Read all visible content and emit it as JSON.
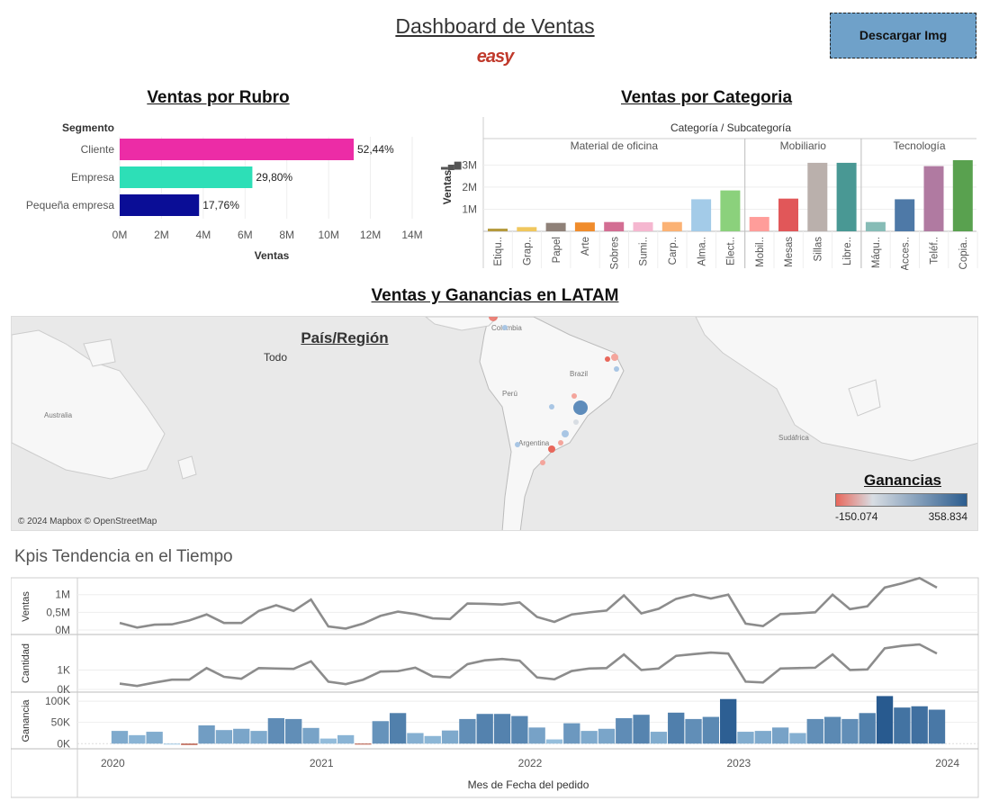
{
  "header": {
    "title": "Dashboard de Ventas",
    "logo_text": "easy",
    "download_label": "Descargar Img"
  },
  "rubro": {
    "title": "Ventas por Rubro",
    "segment_header": "Segmento",
    "xlabel": "Ventas",
    "ticks": [
      "0M",
      "2M",
      "4M",
      "6M",
      "8M",
      "10M",
      "12M",
      "14M"
    ]
  },
  "categoria": {
    "title": "Ventas por Categoria",
    "header": "Categoría / Subcategoría",
    "ylabel": "Ventas",
    "yticks": [
      "1M",
      "2M",
      "3M"
    ],
    "groups": [
      "Material de oficina",
      "Mobiliario",
      "Tecnología"
    ]
  },
  "map": {
    "title": "Ventas y Ganancias en LATAM",
    "filter_title": "País/Región",
    "filter_value": "Todo",
    "attribution": "© 2024 Mapbox © OpenStreetMap",
    "labels": {
      "australia": "Australia",
      "peru": "Perú",
      "brazil": "Brazil",
      "argentina": "Argentina",
      "colombia": "Colombia",
      "sudafrica": "Sudáfrica"
    },
    "legend_title": "Ganancias",
    "legend_min": "-150.074",
    "legend_max": "358.834",
    "colors": {
      "negative": "#e8675b",
      "neutral": "#d8dde3",
      "positive": "#2c5d8f"
    }
  },
  "kpi": {
    "title": "Kpis Tendencia en el Tiempo",
    "row_labels": [
      "Ventas",
      "Cantidad",
      "Ganancia"
    ],
    "ventas_ticks": [
      "1M",
      "0,5M",
      "0M"
    ],
    "cantidad_ticks": [
      "1K",
      "0K"
    ],
    "ganancia_ticks": [
      "100K",
      "50K",
      "0K"
    ],
    "year_labels": [
      "2020",
      "2021",
      "2022",
      "2023",
      "2024"
    ],
    "xlabel": "Mes de Fecha del pedido"
  },
  "chart_data": [
    {
      "type": "bar",
      "orientation": "horizontal",
      "categories": [
        "Cliente",
        "Empresa",
        "Pequeña empresa"
      ],
      "values": [
        11.2,
        6.35,
        3.8
      ],
      "value_unit": "M",
      "data_labels": [
        "52,44%",
        "29,80%",
        "17,76%"
      ],
      "colors": [
        "#ec2ca6",
        "#2ddfb7",
        "#0a0d96"
      ],
      "xlim": [
        0,
        14
      ]
    },
    {
      "type": "bar",
      "groups": [
        {
          "name": "Material de oficina",
          "categories": [
            "Etiqu..",
            "Grap..",
            "Papel",
            "Arte",
            "Sobres",
            "Sumi..",
            "Carp..",
            "Alma..",
            "Elect.."
          ],
          "values": [
            0.12,
            0.19,
            0.38,
            0.4,
            0.42,
            0.41,
            0.42,
            1.45,
            1.85
          ],
          "colors": [
            "#b59a3c",
            "#f0c75e",
            "#8f8178",
            "#f08c2c",
            "#d36e93",
            "#f5b7d0",
            "#fbb274",
            "#a3cbe8",
            "#8bd17c"
          ]
        },
        {
          "name": "Mobiliario",
          "categories": [
            "Mobil..",
            "Mesas",
            "Sillas",
            "Libre.."
          ],
          "values": [
            0.65,
            1.48,
            3.1,
            3.1
          ],
          "colors": [
            "#ff9d9a",
            "#e15759",
            "#bab0ac",
            "#499894"
          ]
        },
        {
          "name": "Tecnología",
          "categories": [
            "Máqu..",
            "Acces..",
            "Teléf..",
            "Copia.."
          ],
          "values": [
            0.42,
            1.45,
            2.95,
            3.22
          ],
          "colors": [
            "#86bcb6",
            "#4e79a7",
            "#b07aa1",
            "#59a14f"
          ]
        }
      ],
      "ylim": [
        0,
        3.3
      ],
      "unit": "M"
    },
    {
      "type": "line",
      "name": "Ventas",
      "x_start": "2020-01",
      "values": [
        0.2,
        0.07,
        0.15,
        0.16,
        0.27,
        0.44,
        0.2,
        0.2,
        0.54,
        0.7,
        0.54,
        0.86,
        0.1,
        0.04,
        0.18,
        0.4,
        0.52,
        0.45,
        0.33,
        0.31,
        0.75,
        0.74,
        0.72,
        0.78,
        0.37,
        0.23,
        0.44,
        0.5,
        0.55,
        0.98,
        0.47,
        0.6,
        0.88,
        1.0,
        0.89,
        1.0,
        0.18,
        0.11,
        0.45,
        0.47,
        0.5,
        1.0,
        0.59,
        0.67,
        1.2,
        1.32,
        1.47,
        1.2
      ],
      "ylim": [
        0,
        1.4
      ],
      "unit": "M"
    },
    {
      "type": "line",
      "name": "Cantidad",
      "x_start": "2020-01",
      "values": [
        0.3,
        0.18,
        0.35,
        0.5,
        0.5,
        1.1,
        0.65,
        0.55,
        1.1,
        1.08,
        1.06,
        1.45,
        0.4,
        0.27,
        0.5,
        0.92,
        0.94,
        1.12,
        0.67,
        0.62,
        1.3,
        1.5,
        1.57,
        1.48,
        0.62,
        0.52,
        0.95,
        1.08,
        1.1,
        1.8,
        1.0,
        1.08,
        1.73,
        1.82,
        1.9,
        1.85,
        0.4,
        0.36,
        1.08,
        1.1,
        1.12,
        1.8,
        1.0,
        1.03,
        2.12,
        2.25,
        2.32,
        1.85
      ],
      "ylim": [
        0,
        2.6
      ],
      "unit": "K"
    },
    {
      "type": "bar",
      "name": "Ganancia",
      "x_start": "2020-01",
      "values": [
        30,
        20,
        28,
        0,
        -3,
        43,
        32,
        35,
        30,
        60,
        58,
        37,
        12,
        20,
        -1,
        53,
        72,
        25,
        18,
        31,
        58,
        70,
        70,
        65,
        38,
        10,
        48,
        30,
        35,
        60,
        68,
        28,
        73,
        58,
        63,
        105,
        28,
        30,
        38,
        25,
        58,
        63,
        58,
        72,
        112,
        85,
        88,
        80
      ],
      "ylim": [
        -10,
        115
      ],
      "unit": "K",
      "years": [
        "2020",
        "2021",
        "2022",
        "2023",
        "2024"
      ]
    }
  ]
}
